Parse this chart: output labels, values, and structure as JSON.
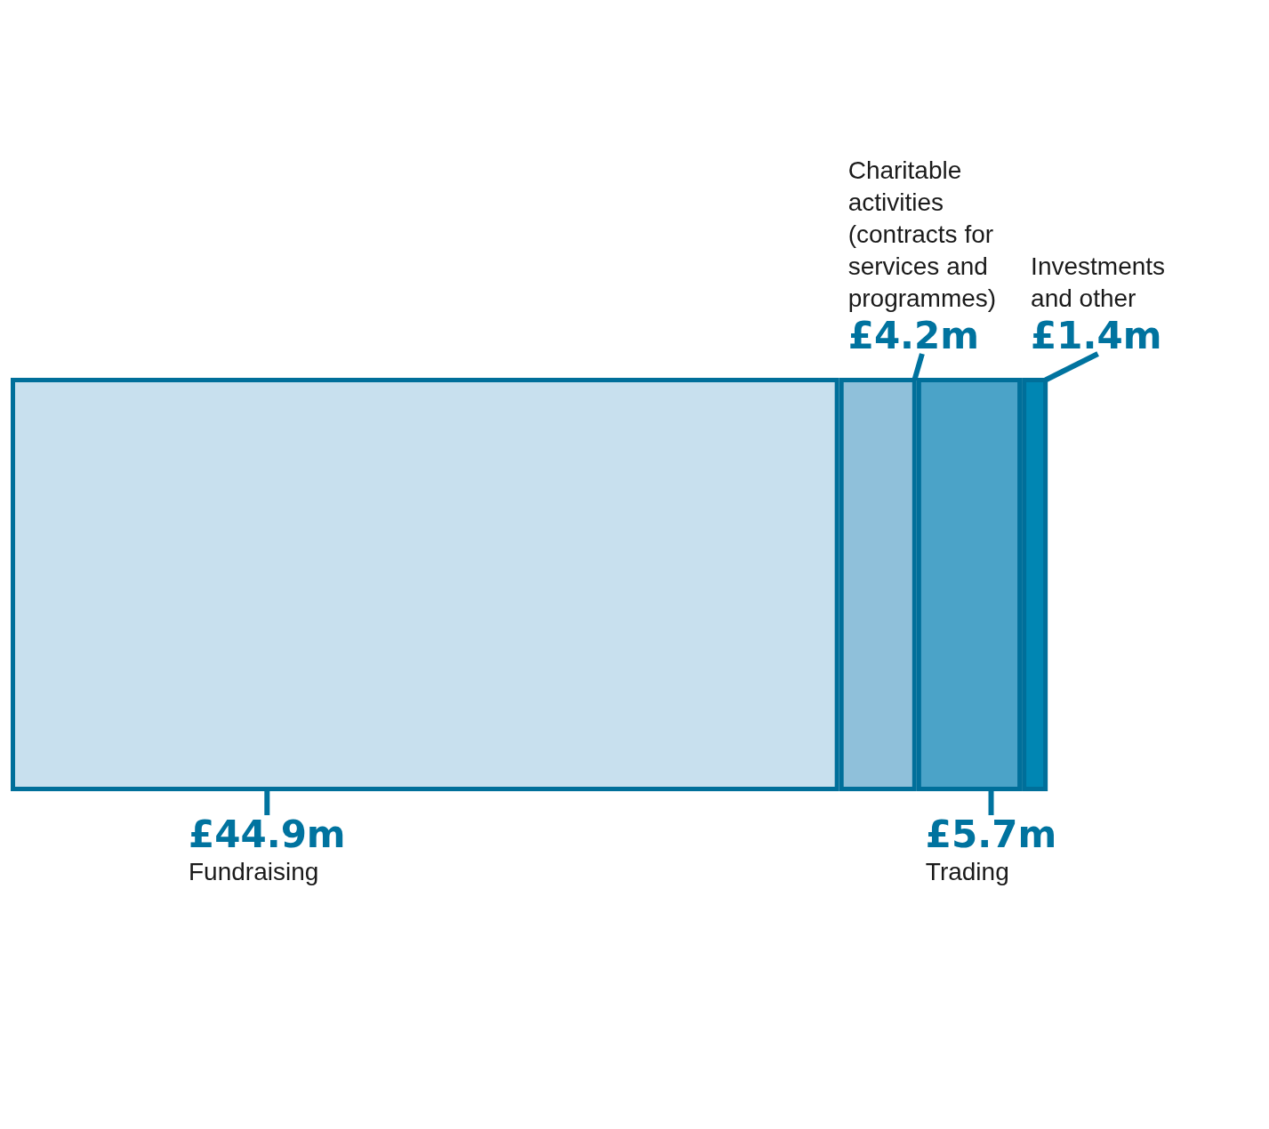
{
  "chart_data": {
    "type": "bar",
    "orientation": "horizontal",
    "stacked": true,
    "categories": [
      null
    ],
    "series": [
      {
        "name": "Fundraising",
        "color": "#c8e0ee",
        "values": [
          44.9
        ],
        "value_labels": [
          "£44.9m"
        ]
      },
      {
        "name": "Charitable activities (contracts for services and programmes)",
        "color": "#8fc0da",
        "values": [
          4.2
        ],
        "value_labels": [
          "£4.2m"
        ]
      },
      {
        "name": "Trading",
        "color": "#4ba3c8",
        "values": [
          5.7
        ],
        "value_labels": [
          "£5.7m"
        ]
      },
      {
        "name": "Investments and other",
        "color": "#0086b3",
        "values": [
          1.4
        ],
        "value_labels": [
          "£1.4m"
        ]
      }
    ],
    "grid": false,
    "legend": false
  }
}
